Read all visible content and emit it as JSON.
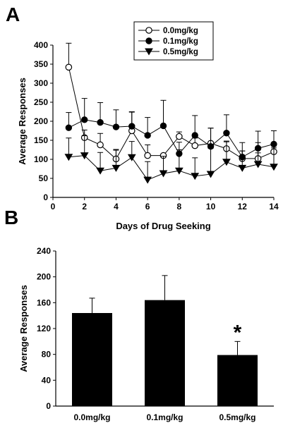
{
  "chart_data": [
    {
      "panel": "A",
      "type": "line",
      "xlabel": "Days of Drug Seeking",
      "ylabel": "Average Responses",
      "xlim": [
        0,
        14
      ],
      "ylim": [
        0,
        400
      ],
      "xticks": [
        0,
        2,
        4,
        6,
        8,
        10,
        12,
        14
      ],
      "yticks": [
        0,
        50,
        100,
        150,
        200,
        250,
        300,
        350,
        400
      ],
      "grid": false,
      "legend_position": "top-right",
      "x": [
        1,
        2,
        3,
        4,
        5,
        6,
        7,
        8,
        9,
        10,
        11,
        12,
        13,
        14
      ],
      "series": [
        {
          "name": "0.0mg/kg",
          "marker": "open-circle",
          "values": [
            342,
            157,
            138,
            101,
            175,
            110,
            110,
            160,
            136,
            142,
            128,
            102,
            102,
            120
          ],
          "error": [
            63,
            20,
            30,
            25,
            50,
            28,
            0,
            12,
            20,
            40,
            18,
            20,
            15,
            15
          ]
        },
        {
          "name": "0.1mg/kg",
          "marker": "filled-circle",
          "values": [
            183,
            204,
            197,
            185,
            187,
            163,
            188,
            115,
            163,
            134,
            169,
            106,
            129,
            140
          ],
          "error": [
            40,
            56,
            52,
            45,
            37,
            47,
            67,
            30,
            52,
            48,
            48,
            38,
            45,
            35
          ]
        },
        {
          "name": "0.5mg/kg",
          "marker": "filled-triangle-down",
          "values": [
            106,
            110,
            70,
            77,
            105,
            46,
            63,
            70,
            56,
            61,
            93,
            77,
            87,
            80
          ],
          "error": [
            50,
            52,
            48,
            47,
            42,
            48,
            45,
            55,
            48,
            68,
            55,
            45,
            57,
            50
          ]
        }
      ]
    },
    {
      "panel": "B",
      "type": "bar",
      "ylabel": "Average Responses",
      "ylim": [
        0,
        240
      ],
      "yticks": [
        0,
        40,
        80,
        120,
        160,
        200,
        240
      ],
      "categories": [
        "0.0mg/kg",
        "0.1mg/kg",
        "0.5mg/kg"
      ],
      "values": [
        144,
        164,
        79
      ],
      "error": [
        23,
        38,
        21
      ],
      "bar_color": "#000000",
      "annotations": [
        {
          "category": "0.5mg/kg",
          "text": "*"
        }
      ]
    }
  ]
}
